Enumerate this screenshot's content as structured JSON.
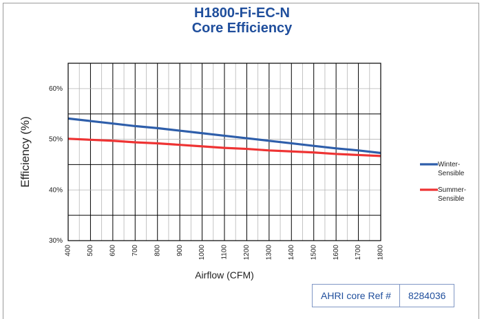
{
  "chart_data": {
    "type": "line",
    "title": "H1800-Fi-EC-N",
    "subtitle": "Core Efficiency",
    "xlabel": "Airflow (CFM)",
    "ylabel": "Efficiency (%)",
    "x": [
      400,
      500,
      600,
      700,
      800,
      900,
      1000,
      1100,
      1200,
      1300,
      1400,
      1500,
      1600,
      1700,
      1800
    ],
    "xlim": [
      400,
      1800
    ],
    "ylim": [
      30,
      65
    ],
    "y_ticks": [
      30,
      40,
      50,
      60
    ],
    "y_tick_labels": [
      "30%",
      "40%",
      "50%",
      "60%"
    ],
    "grid": true,
    "legend_position": "right",
    "series": [
      {
        "name": "Winter-Sensible",
        "legend_lines": [
          "Winter-",
          "Sensible"
        ],
        "color": "#2e5eaa",
        "values": [
          54.1,
          53.6,
          53.1,
          52.6,
          52.2,
          51.7,
          51.2,
          50.7,
          50.2,
          49.7,
          49.2,
          48.7,
          48.2,
          47.8,
          47.3
        ]
      },
      {
        "name": "Summer-Sensible",
        "legend_lines": [
          "Summer-",
          "Sensible"
        ],
        "color": "#ee3333",
        "values": [
          50.1,
          49.9,
          49.7,
          49.4,
          49.2,
          48.9,
          48.6,
          48.3,
          48.1,
          47.8,
          47.6,
          47.4,
          47.1,
          46.9,
          46.7
        ]
      }
    ]
  },
  "ahri": {
    "label": "AHRI core Ref #",
    "value": "8284036"
  }
}
